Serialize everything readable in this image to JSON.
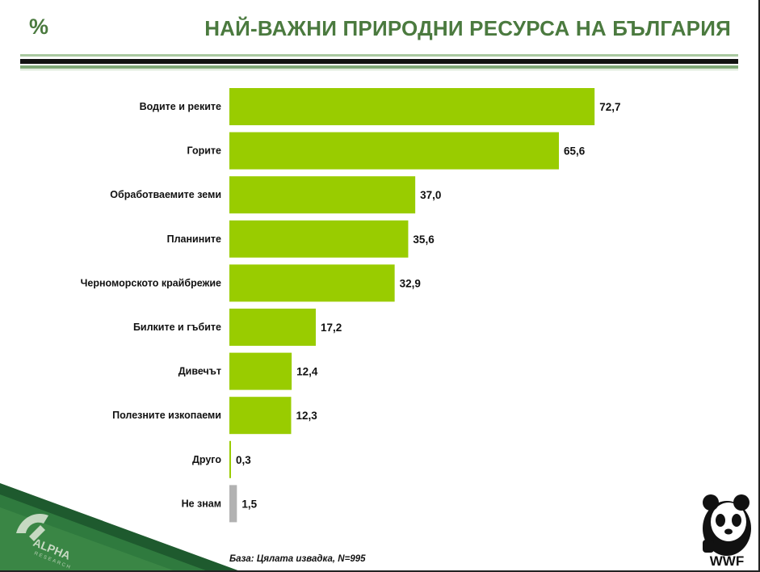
{
  "header": {
    "percent_symbol": "%",
    "title": "НАЙ-ВАЖНИ ПРИРОДНИ РЕСУРСА НА БЪЛГАРИЯ"
  },
  "chart_data": {
    "type": "bar",
    "orientation": "horizontal",
    "categories": [
      "Водите и реките",
      "Горите",
      "Обработваемите земи",
      "Планините",
      "Черноморското крайбрежие",
      "Билките и гъбите",
      "Дивечът",
      "Полезните изкопаеми",
      "Друго",
      "Не знам"
    ],
    "values": [
      72.7,
      65.6,
      37.0,
      35.6,
      32.9,
      17.2,
      12.4,
      12.3,
      0.3,
      1.5
    ],
    "value_labels": [
      "72,7",
      "65,6",
      "37,0",
      "35,6",
      "32,9",
      "17,2",
      "12,4",
      "12,3",
      "0,3",
      "1,5"
    ],
    "bar_colors": [
      "#99cc00",
      "#99cc00",
      "#99cc00",
      "#99cc00",
      "#99cc00",
      "#99cc00",
      "#99cc00",
      "#99cc00",
      "#99cc00",
      "#b2b2b2"
    ],
    "title": "НАЙ-ВАЖНИ ПРИРОДНИ РЕСУРСА НА БЪЛГАРИЯ",
    "xlim": [
      0,
      100
    ],
    "grid": false,
    "legend": "none"
  },
  "footer": {
    "base_note": "База: Цялата извадка, N=995"
  },
  "logos": {
    "alpha_research": "ALPHA RESEARCH",
    "wwf": "WWF"
  },
  "colors": {
    "title_green": "#4b7a3f",
    "bar_green": "#99cc00",
    "bar_gray": "#b2b2b2",
    "corner_dark_green": "#1e5a2e"
  }
}
